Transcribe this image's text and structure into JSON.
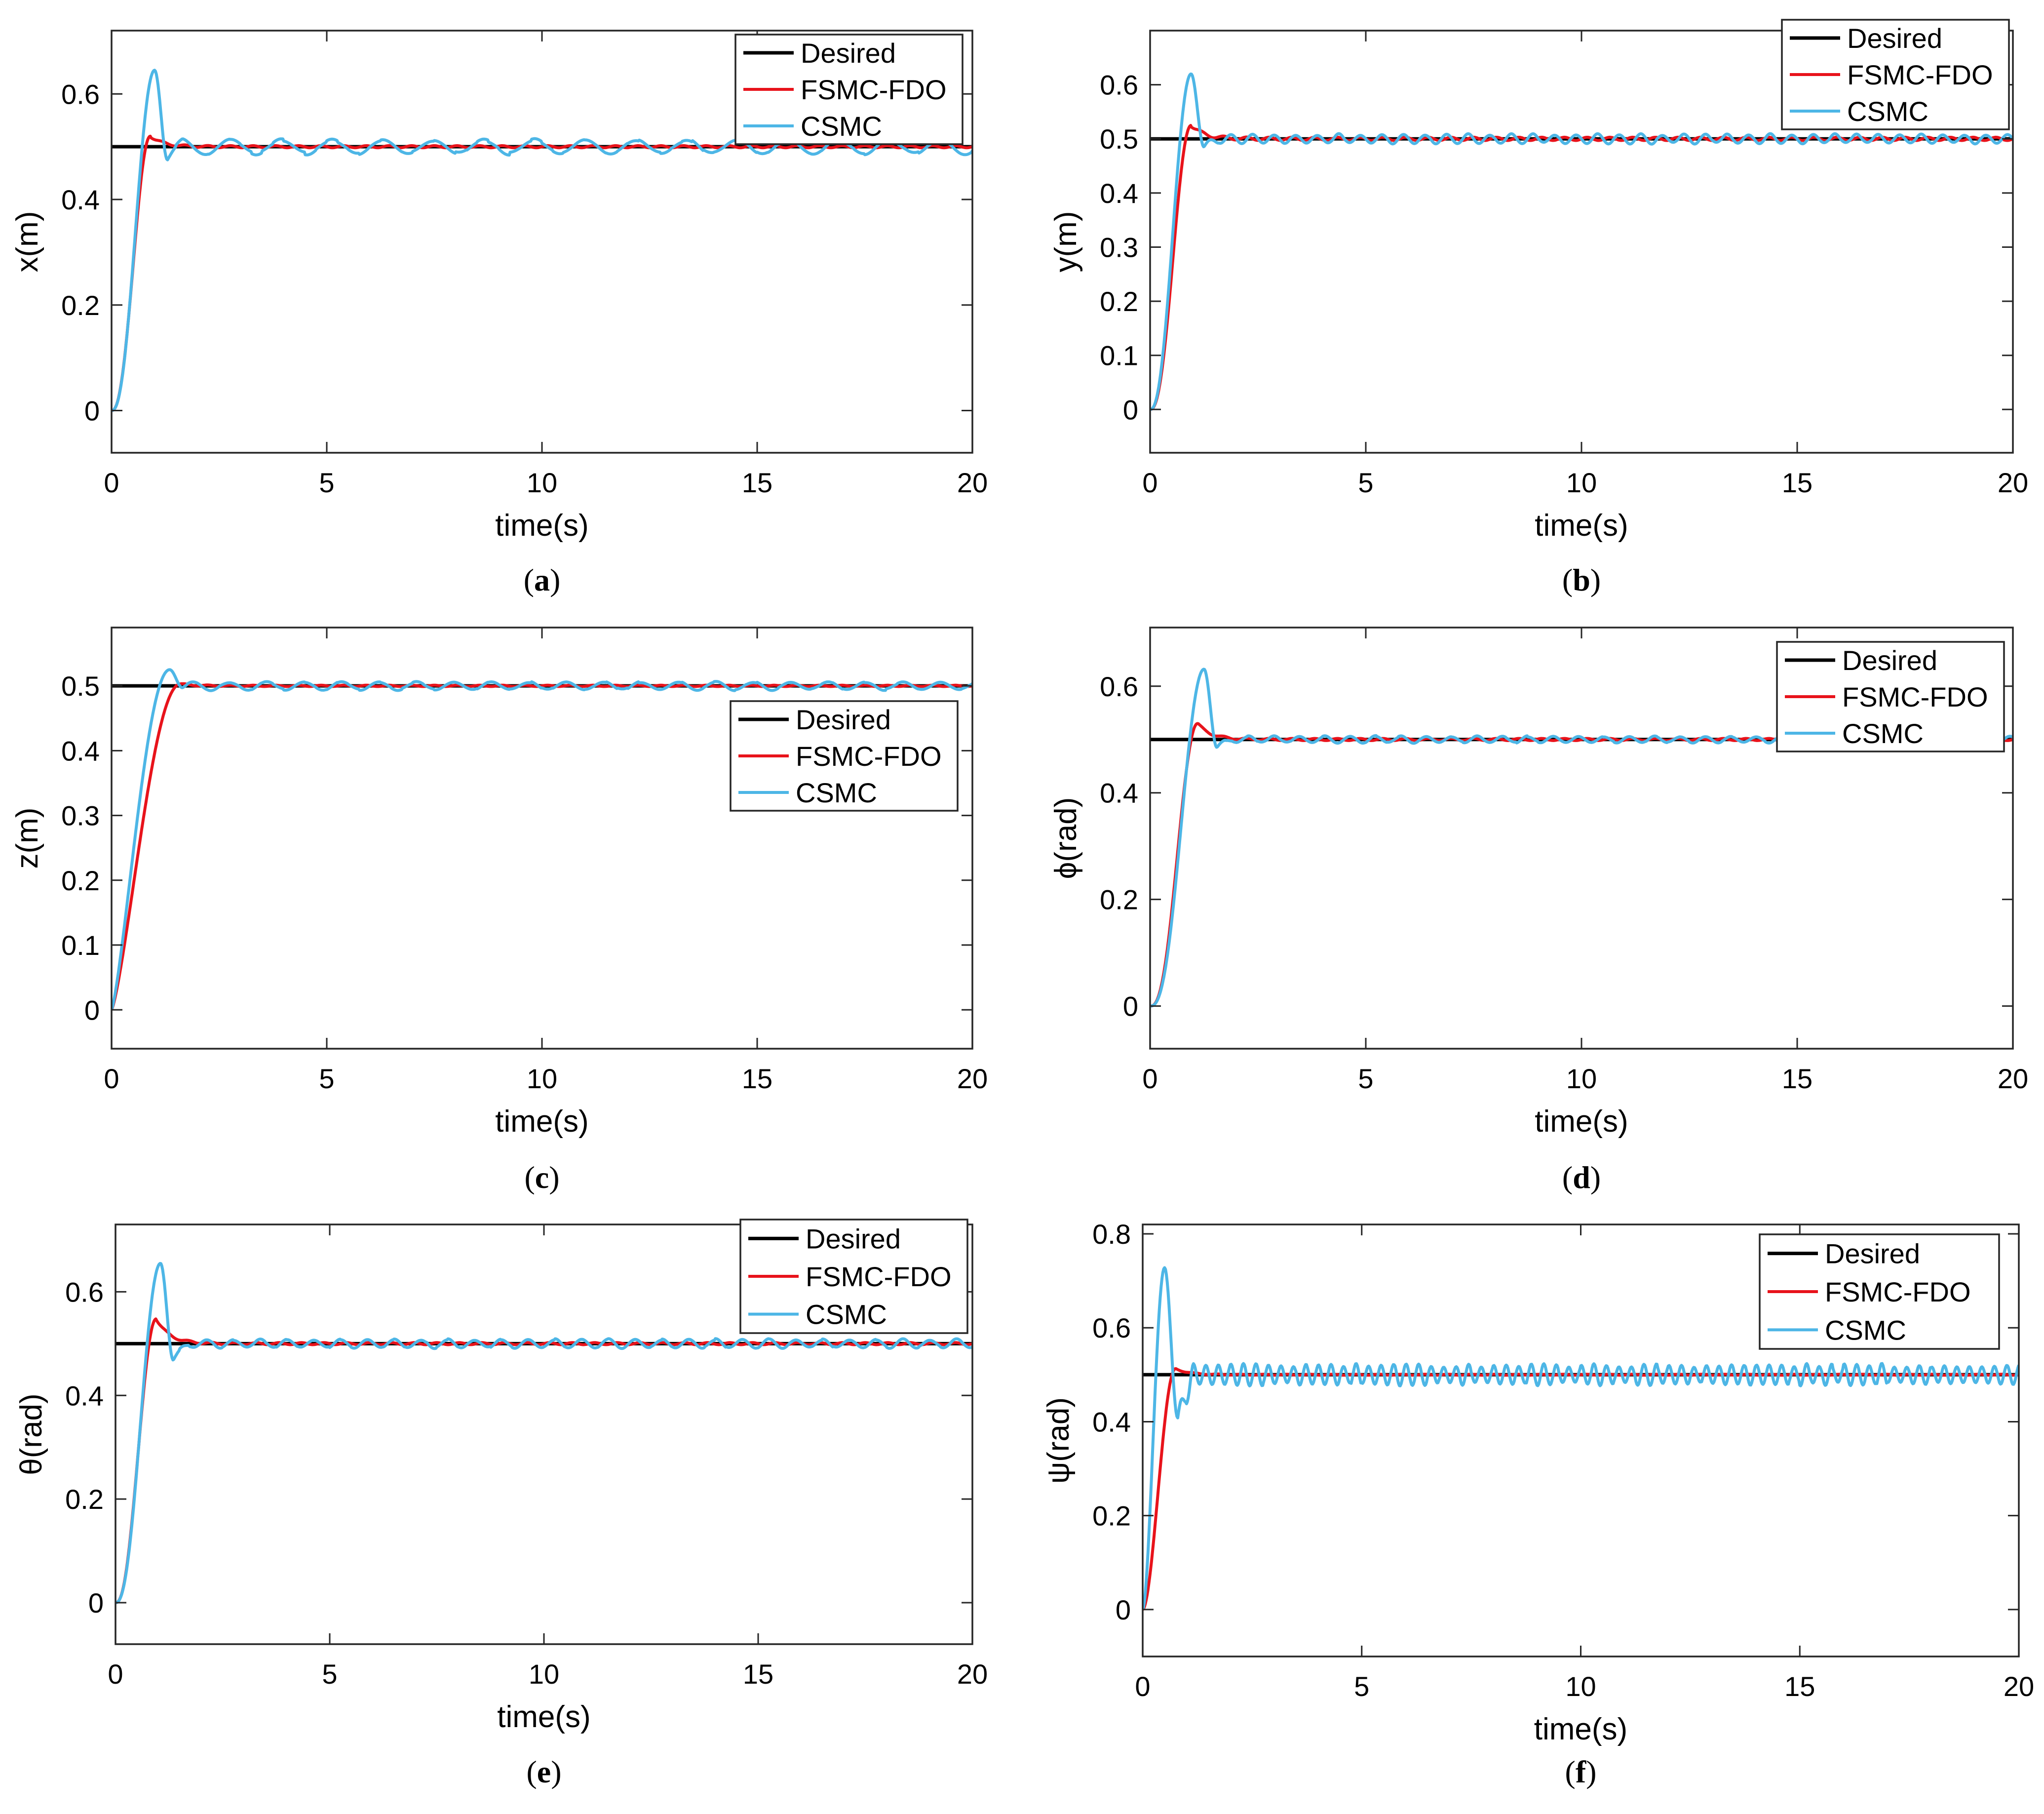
{
  "figure": {
    "legend_labels": [
      "Desired",
      "FSMC-FDO",
      "CSMC"
    ],
    "series_colors": {
      "Desired": "#000000",
      "FSMC-FDO": "#e8131b",
      "CSMC": "#4db6e6"
    },
    "time_label": "time(s)"
  },
  "chart_data": [
    {
      "type": "line",
      "caption_letter": "a",
      "xlabel": "time(s)",
      "ylabel": "x(m)",
      "xlim": [
        0,
        20
      ],
      "ylim": [
        -0.08,
        0.72
      ],
      "xticks": [
        0,
        5,
        10,
        15,
        20
      ],
      "yticks": [
        0,
        0.2,
        0.4,
        0.6
      ],
      "legend_position": "top-right",
      "settle": 0.5,
      "fsmc_peak": 0.52,
      "fsmc_peak_time": 0.9,
      "csmc_peak": 0.645,
      "csmc_peak_time": 1.0,
      "csmc_undershoot": 0.475,
      "csmc_osc_amp": 0.013,
      "csmc_osc_freq": 0.85,
      "fsmc_noise": 0.002,
      "rise_shape": 2.4,
      "series": [
        {
          "name": "Desired",
          "desc": "constant 0.5 for t in [0, 20]"
        },
        {
          "name": "FSMC-FDO",
          "desc": "rises from 0 to 0.52 at t≈0.9 s, settles at 0.5"
        },
        {
          "name": "CSMC",
          "desc": "rises from 0 to 0.645 at t≈1.0 s, dips to 0.475, oscillates ±0.013 about 0.5"
        }
      ]
    },
    {
      "type": "line",
      "caption_letter": "b",
      "xlabel": "time(s)",
      "ylabel": "y(m)",
      "xlim": [
        0,
        20
      ],
      "ylim": [
        -0.08,
        0.7
      ],
      "xticks": [
        0,
        5,
        10,
        15,
        20
      ],
      "yticks": [
        0,
        0.1,
        0.2,
        0.3,
        0.4,
        0.5,
        0.6
      ],
      "legend_position": "top-right",
      "settle": 0.5,
      "fsmc_peak": 0.525,
      "fsmc_peak_time": 0.95,
      "csmc_peak": 0.62,
      "csmc_peak_time": 0.95,
      "csmc_undershoot": 0.485,
      "csmc_osc_amp": 0.008,
      "csmc_osc_freq": 2.0,
      "fsmc_noise": 0.003,
      "rise_shape": 2.4,
      "series": [
        {
          "name": "Desired",
          "desc": "constant 0.5 for t in [0, 20]"
        },
        {
          "name": "FSMC-FDO",
          "desc": "rises from 0 to 0.525 at t≈0.95 s, settles at 0.5"
        },
        {
          "name": "CSMC",
          "desc": "rises from 0 to 0.62 at t≈0.95 s, dips to 0.485, oscillates ±0.008 about 0.5"
        }
      ]
    },
    {
      "type": "line",
      "caption_letter": "c",
      "xlabel": "time(s)",
      "ylabel": "z(m)",
      "xlim": [
        0,
        20
      ],
      "ylim": [
        -0.06,
        0.59
      ],
      "xticks": [
        0,
        5,
        10,
        15,
        20
      ],
      "yticks": [
        0,
        0.1,
        0.2,
        0.3,
        0.4,
        0.5
      ],
      "legend_position": "middle-right",
      "settle": 0.5,
      "fsmc_peak": 0.503,
      "fsmc_peak_time": 1.6,
      "csmc_peak": 0.525,
      "csmc_peak_time": 1.35,
      "csmc_undershoot": 0.497,
      "csmc_osc_amp": 0.006,
      "csmc_osc_freq": 1.15,
      "fsmc_noise": 0.001,
      "rise_shape": 1.3,
      "series": [
        {
          "name": "Desired",
          "desc": "constant 0.5 for t in [0, 20]"
        },
        {
          "name": "FSMC-FDO",
          "desc": "rises from 0 to 0.5 by t≈1.6 s, holds 0.5"
        },
        {
          "name": "CSMC",
          "desc": "rises from 0 to 0.525 at t≈1.35 s, oscillates ±0.006 about 0.5"
        }
      ]
    },
    {
      "type": "line",
      "caption_letter": "d",
      "xlabel": "time(s)",
      "ylabel": "ϕ(rad)",
      "xlim": [
        0,
        20
      ],
      "ylim": [
        -0.08,
        0.71
      ],
      "xticks": [
        0,
        5,
        10,
        15,
        20
      ],
      "yticks": [
        0,
        0.2,
        0.4,
        0.6
      ],
      "legend_position": "top-right",
      "settle": 0.5,
      "fsmc_peak": 0.53,
      "fsmc_peak_time": 1.1,
      "csmc_peak": 0.632,
      "csmc_peak_time": 1.25,
      "csmc_undershoot": 0.485,
      "csmc_osc_amp": 0.006,
      "csmc_osc_freq": 1.7,
      "fsmc_noise": 0.002,
      "rise_shape": 2.6,
      "series": [
        {
          "name": "Desired",
          "desc": "constant 0.5 for t in [0, 20]"
        },
        {
          "name": "FSMC-FDO",
          "desc": "rises from 0 to 0.53 at t≈1.1 s, settles at 0.5"
        },
        {
          "name": "CSMC",
          "desc": "rises from 0 to 0.632 at t≈1.25 s, dips to 0.485, oscillates ±0.006 about 0.5"
        }
      ]
    },
    {
      "type": "line",
      "caption_letter": "e",
      "xlabel": "time(s)",
      "ylabel": "θ(rad)",
      "xlim": [
        0,
        20
      ],
      "ylim": [
        -0.08,
        0.73
      ],
      "xticks": [
        0,
        5,
        10,
        15,
        20
      ],
      "yticks": [
        0,
        0.2,
        0.4,
        0.6
      ],
      "legend_position": "top-right",
      "settle": 0.5,
      "fsmc_peak": 0.548,
      "fsmc_peak_time": 0.95,
      "csmc_peak": 0.655,
      "csmc_peak_time": 1.05,
      "csmc_undershoot": 0.468,
      "csmc_osc_amp": 0.008,
      "csmc_osc_freq": 1.6,
      "fsmc_noise": 0.002,
      "rise_shape": 2.4,
      "series": [
        {
          "name": "Desired",
          "desc": "constant 0.5 for t in [0, 20]"
        },
        {
          "name": "FSMC-FDO",
          "desc": "rises from 0 to 0.548 at t≈0.95 s, settles at 0.5"
        },
        {
          "name": "CSMC",
          "desc": "rises from 0 to 0.655 at t≈1.05 s, dips to 0.468, oscillates ±0.008 about 0.5"
        }
      ]
    },
    {
      "type": "line",
      "caption_letter": "f",
      "xlabel": "time(s)",
      "ylabel": "ψ(rad)",
      "xlim": [
        0,
        20
      ],
      "ylim": [
        -0.1,
        0.82
      ],
      "xticks": [
        0,
        5,
        10,
        15,
        20
      ],
      "yticks": [
        0,
        0.2,
        0.4,
        0.6,
        0.8
      ],
      "legend_position": "top-right",
      "settle": 0.5,
      "fsmc_peak": 0.513,
      "fsmc_peak_time": 0.75,
      "csmc_peak": 0.728,
      "csmc_peak_time": 0.5,
      "csmc_undershoot": 0.408,
      "csmc_osc_amp": 0.02,
      "csmc_osc_freq": 3.5,
      "fsmc_noise": 0.001,
      "rise_shape": 1.8,
      "series": [
        {
          "name": "Desired",
          "desc": "constant 0.5 for t in [0, 20]"
        },
        {
          "name": "FSMC-FDO",
          "desc": "rises from 0 to 0.513 at t≈0.75 s, settles at 0.5"
        },
        {
          "name": "CSMC",
          "desc": "rises from 0 to 0.728 at t≈0.5 s, dips to 0.408, oscillates ±0.02 about 0.5"
        }
      ]
    }
  ]
}
